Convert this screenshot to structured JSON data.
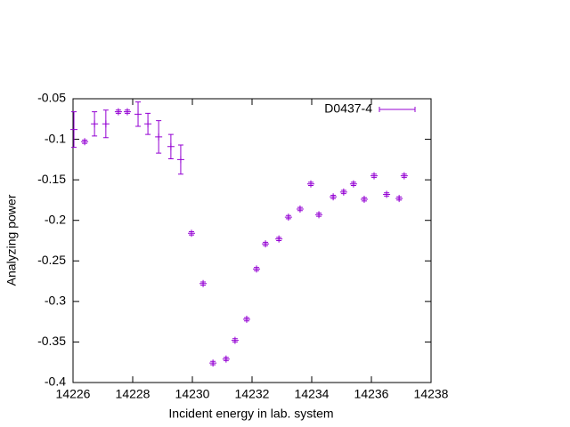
{
  "chart_data": {
    "type": "scatter",
    "xlabel": "Incident energy in lab. system",
    "ylabel": "Analyzing power",
    "xlim": [
      14226,
      14238
    ],
    "xticks": [
      14226,
      14228,
      14230,
      14232,
      14234,
      14236,
      14238
    ],
    "ylim": [
      -0.4,
      -0.05
    ],
    "yticks": [
      -0.4,
      -0.35,
      -0.3,
      -0.25,
      -0.2,
      -0.15,
      -0.1,
      -0.05
    ],
    "grid": false,
    "legend": "top-right",
    "series": [
      {
        "name": "D0437-4",
        "color": "#9400d3",
        "x": [
          14226.03,
          14226.39,
          14226.72,
          14227.1,
          14227.52,
          14227.82,
          14228.18,
          14228.51,
          14228.87,
          14229.28,
          14229.61,
          14229.97,
          14230.36,
          14230.69,
          14231.13,
          14231.43,
          14231.82,
          14232.15,
          14232.45,
          14232.9,
          14233.22,
          14233.61,
          14233.97,
          14234.24,
          14234.72,
          14235.07,
          14235.4,
          14235.76,
          14236.09,
          14236.51,
          14236.93,
          14237.1
        ],
        "values": [
          -0.088,
          -0.103,
          -0.081,
          -0.081,
          -0.066,
          -0.066,
          -0.069,
          -0.081,
          -0.097,
          -0.109,
          -0.125,
          -0.216,
          -0.278,
          -0.376,
          -0.371,
          -0.348,
          -0.322,
          -0.26,
          -0.229,
          -0.223,
          -0.196,
          -0.186,
          -0.155,
          -0.193,
          -0.171,
          -0.165,
          -0.155,
          -0.174,
          -0.145,
          -0.168,
          -0.173,
          -0.145
        ],
        "errors": [
          0.022,
          0.002,
          0.015,
          0.017,
          0.002,
          0.002,
          0.015,
          0.013,
          0.02,
          0.015,
          0.018,
          0.002,
          0.002,
          0.002,
          0.002,
          0.002,
          0.002,
          0.002,
          0.002,
          0.002,
          0.002,
          0.002,
          0.002,
          0.002,
          0.002,
          0.002,
          0.002,
          0.002,
          0.002,
          0.002,
          0.002,
          0.002
        ]
      }
    ]
  }
}
